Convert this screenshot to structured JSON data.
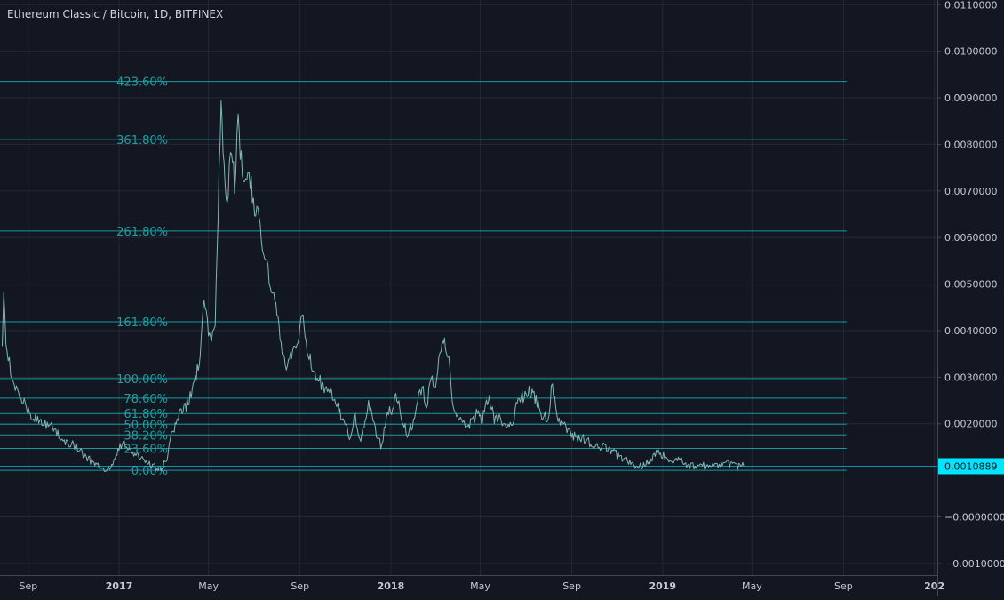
{
  "title": "Ethereum Classic / Bitcoin, 1D, BITFINEX",
  "colors": {
    "background": "#131722",
    "grid": "#242833",
    "axis_text": "#c6c9d2",
    "price_line": "#7fb7b4",
    "fib_line": "#169a9c",
    "fib_text": "#1f9ea0",
    "last_price_bg": "#00e5ff",
    "last_price_text": "#131722"
  },
  "chart_data": {
    "type": "line",
    "title": "Ethereum Classic / Bitcoin, 1D, BITFINEX",
    "xlabel": "",
    "ylabel": "",
    "ylim": [
      -0.00125,
      0.0111
    ],
    "xlim": [
      "2016-07-25",
      "2020-01-05"
    ],
    "grid": true,
    "y_ticks": [
      "0.0110000",
      "0.0100000",
      "0.0090000",
      "0.0080000",
      "0.0070000",
      "0.0060000",
      "0.0050000",
      "0.0040000",
      "0.0030000",
      "0.0020000",
      "0.0010889",
      "−0.0000000",
      "−0.0010000"
    ],
    "y_tick_values": [
      0.011,
      0.01,
      0.009,
      0.008,
      0.007,
      0.006,
      0.005,
      0.004,
      0.003,
      0.002,
      0.0010889,
      0.0,
      -0.001
    ],
    "x_ticks": [
      {
        "label": "Sep",
        "date": "2016-09-01"
      },
      {
        "label": "2017",
        "date": "2017-01-01"
      },
      {
        "label": "May",
        "date": "2017-05-01"
      },
      {
        "label": "Sep",
        "date": "2017-09-01"
      },
      {
        "label": "2018",
        "date": "2018-01-01"
      },
      {
        "label": "May",
        "date": "2018-05-01"
      },
      {
        "label": "Sep",
        "date": "2018-09-01"
      },
      {
        "label": "2019",
        "date": "2019-01-01"
      },
      {
        "label": "May",
        "date": "2019-05-01"
      },
      {
        "label": "Sep",
        "date": "2019-09-01"
      },
      {
        "label": "202",
        "date": "2020-01-01"
      }
    ],
    "last_price": 0.0010889,
    "last_price_label": "0.0010889",
    "fib_levels": [
      {
        "label": "423.60%",
        "value": 0.00935
      },
      {
        "label": "361.80%",
        "value": 0.0081
      },
      {
        "label": "261.80%",
        "value": 0.00614
      },
      {
        "label": "161.80%",
        "value": 0.00419
      },
      {
        "label": "100.00%",
        "value": 0.00297
      },
      {
        "label": "78.60%",
        "value": 0.00255
      },
      {
        "label": "61.80%",
        "value": 0.00222
      },
      {
        "label": "50.00%",
        "value": 0.00199
      },
      {
        "label": "38.20%",
        "value": 0.00176
      },
      {
        "label": "23.60%",
        "value": 0.00147
      },
      {
        "label": "0.00%",
        "value": 0.001
      }
    ],
    "fib_end_date": "2019-09-05",
    "series": [
      {
        "x": [
          "2016-07-28",
          "2016-07-30",
          "2016-08-02",
          "2016-08-05",
          "2016-08-10",
          "2016-08-16",
          "2016-08-22",
          "2016-08-28",
          "2016-09-05",
          "2016-09-15",
          "2016-09-25",
          "2016-10-05",
          "2016-10-15",
          "2016-10-25",
          "2016-11-05",
          "2016-11-15",
          "2016-11-25",
          "2016-12-05",
          "2016-12-15",
          "2016-12-25",
          "2017-01-05",
          "2017-01-15",
          "2017-01-25",
          "2017-02-05",
          "2017-02-15",
          "2017-02-25",
          "2017-03-05",
          "2017-03-12",
          "2017-03-20",
          "2017-03-28",
          "2017-04-05",
          "2017-04-12",
          "2017-04-20",
          "2017-04-25",
          "2017-05-01",
          "2017-05-05",
          "2017-05-10",
          "2017-05-14",
          "2017-05-18",
          "2017-05-22",
          "2017-05-26",
          "2017-06-01",
          "2017-06-05",
          "2017-06-10",
          "2017-06-14",
          "2017-06-20",
          "2017-06-26",
          "2017-07-02",
          "2017-07-08",
          "2017-07-14",
          "2017-07-20",
          "2017-07-26",
          "2017-08-01",
          "2017-08-08",
          "2017-08-15",
          "2017-08-22",
          "2017-08-28",
          "2017-09-05",
          "2017-09-12",
          "2017-09-20",
          "2017-09-28",
          "2017-10-05",
          "2017-10-12",
          "2017-10-19",
          "2017-10-26",
          "2017-11-02",
          "2017-11-08",
          "2017-11-14",
          "2017-11-20",
          "2017-11-26",
          "2017-12-02",
          "2017-12-08",
          "2017-12-14",
          "2017-12-20",
          "2017-12-26",
          "2018-01-02",
          "2018-01-09",
          "2018-01-16",
          "2018-01-23",
          "2018-01-30",
          "2018-02-06",
          "2018-02-12",
          "2018-02-18",
          "2018-02-24",
          "2018-03-02",
          "2018-03-08",
          "2018-03-14",
          "2018-03-20",
          "2018-03-26",
          "2018-04-02",
          "2018-04-10",
          "2018-04-18",
          "2018-04-26",
          "2018-05-04",
          "2018-05-12",
          "2018-05-20",
          "2018-05-28",
          "2018-06-05",
          "2018-06-13",
          "2018-06-21",
          "2018-06-29",
          "2018-07-07",
          "2018-07-15",
          "2018-07-23",
          "2018-07-31",
          "2018-08-06",
          "2018-08-12",
          "2018-08-18",
          "2018-08-24",
          "2018-08-30",
          "2018-09-06",
          "2018-09-15",
          "2018-09-25",
          "2018-10-05",
          "2018-10-15",
          "2018-10-25",
          "2018-11-05",
          "2018-11-15",
          "2018-11-25",
          "2018-12-05",
          "2018-12-15",
          "2018-12-25",
          "2019-01-05",
          "2019-01-15",
          "2019-01-25",
          "2019-02-05",
          "2019-02-15",
          "2019-02-25",
          "2019-03-05",
          "2019-03-15",
          "2019-03-25",
          "2019-04-05",
          "2019-04-12",
          "2019-04-20"
        ],
        "values": [
          0.0035,
          0.005,
          0.0036,
          0.0034,
          0.003,
          0.0027,
          0.0025,
          0.0024,
          0.0022,
          0.0021,
          0.002,
          0.0019,
          0.0017,
          0.0016,
          0.0015,
          0.0013,
          0.0012,
          0.0011,
          0.001,
          0.0012,
          0.0016,
          0.0014,
          0.0013,
          0.0012,
          0.0011,
          0.001,
          0.0012,
          0.0017,
          0.0021,
          0.0023,
          0.0025,
          0.0028,
          0.0035,
          0.0046,
          0.004,
          0.0037,
          0.0042,
          0.0065,
          0.009,
          0.0075,
          0.0068,
          0.008,
          0.0072,
          0.0085,
          0.0076,
          0.007,
          0.0073,
          0.0067,
          0.0063,
          0.0057,
          0.0053,
          0.0048,
          0.0044,
          0.0036,
          0.0032,
          0.0036,
          0.0037,
          0.0043,
          0.0035,
          0.0031,
          0.0029,
          0.0027,
          0.0027,
          0.0025,
          0.0022,
          0.0019,
          0.0017,
          0.0022,
          0.0016,
          0.0019,
          0.0025,
          0.002,
          0.0017,
          0.0015,
          0.0022,
          0.0023,
          0.0026,
          0.0021,
          0.0018,
          0.002,
          0.0025,
          0.0028,
          0.0024,
          0.003,
          0.0028,
          0.0036,
          0.0039,
          0.0033,
          0.0023,
          0.0022,
          0.002,
          0.002,
          0.0022,
          0.0021,
          0.0026,
          0.0021,
          0.0021,
          0.0019,
          0.002,
          0.0025,
          0.0026,
          0.0027,
          0.0025,
          0.0022,
          0.0021,
          0.0029,
          0.0021,
          0.002,
          0.0019,
          0.0018,
          0.0017,
          0.0017,
          0.0016,
          0.0015,
          0.0015,
          0.0014,
          0.0013,
          0.0012,
          0.0011,
          0.0011,
          0.0012,
          0.0014,
          0.0013,
          0.0012,
          0.0012,
          0.0011,
          0.0011,
          0.0011,
          0.0011,
          0.0011,
          0.0012,
          0.0011,
          0.0011,
          0.0010889
        ]
      }
    ]
  }
}
